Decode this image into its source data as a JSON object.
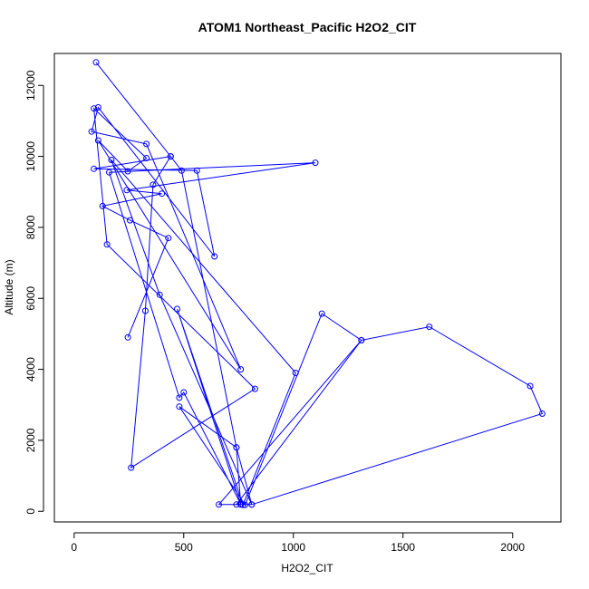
{
  "chart_data": {
    "type": "line",
    "title": "ATOM1 Northeast_Pacific H2O2_CIT",
    "xlabel": "H2O2_CIT",
    "ylabel": "Altitude (m)",
    "xlim": [
      -90,
      2220
    ],
    "ylim": [
      -300,
      12900
    ],
    "xticks": [
      0,
      500,
      1000,
      1500,
      2000
    ],
    "yticks": [
      0,
      2000,
      4000,
      6000,
      8000,
      10000,
      12000
    ],
    "color": "#0000ff",
    "series": [
      {
        "x": [
          100,
          440,
          90,
          560,
          640,
          110,
          80,
          330,
          760,
          110,
          245,
          330,
          90,
          150,
          825,
          260,
          325,
          360,
          440,
          490,
          740,
          810,
          390,
          170,
          1010,
          770,
          470,
          760,
          740,
          480,
          780,
          1130,
          1310,
          1620,
          2080,
          2135,
          810,
          660,
          1310,
          740,
          760,
          500,
          480,
          160,
          1100,
          240,
          400,
          130,
          255,
          430,
          245
        ],
        "y": [
          12650,
          10000,
          9650,
          9600,
          7180,
          11380,
          10700,
          10350,
          4000,
          10450,
          9580,
          9950,
          11350,
          7520,
          3450,
          1230,
          5650,
          9200,
          10000,
          9600,
          1800,
          190,
          6100,
          9900,
          3900,
          180,
          5700,
          190,
          1800,
          2950,
          180,
          5570,
          4820,
          5200,
          3530,
          2750,
          190,
          190,
          4820,
          190,
          200,
          3350,
          3200,
          9550,
          9820,
          9050,
          8950,
          8600,
          8200,
          7700,
          4900
        ]
      }
    ]
  }
}
